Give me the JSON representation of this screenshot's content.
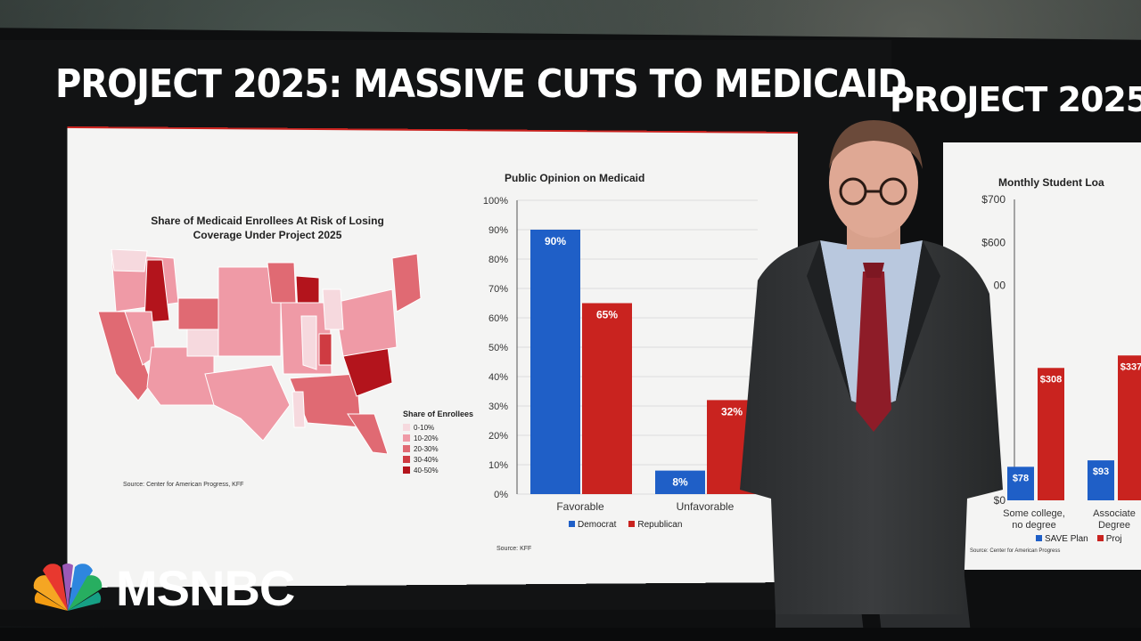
{
  "left_screen": {
    "title": "PROJECT 2025: MASSIVE CUTS TO MEDICAID",
    "map": {
      "title_line1": "Share of Medicaid Enrollees At Risk of Losing",
      "title_line2": "Coverage Under Project 2025",
      "legend_title": "Share of Enrollees",
      "legend": [
        {
          "label": "0-10%",
          "color": "#f6d9de"
        },
        {
          "label": "10-20%",
          "color": "#ef9aa6"
        },
        {
          "label": "20-30%",
          "color": "#e06a73"
        },
        {
          "label": "30-40%",
          "color": "#cf3b42"
        },
        {
          "label": "40-50%",
          "color": "#b3141c"
        }
      ],
      "source": "Source: Center for American Progress, KFF"
    },
    "chart": {
      "title": "Public Opinion on Medicaid",
      "source": "Source: KFF"
    }
  },
  "right_screen": {
    "title": "PROJECT 2025:",
    "chart": {
      "title": "Monthly Student Loa",
      "source": "Source: Center for American Progress"
    },
    "legend": [
      {
        "label": "SAVE Plan",
        "color": "#1f5fc7"
      },
      {
        "label": "Proj",
        "color": "#c9231f"
      }
    ]
  },
  "network_logo": "MSNBC",
  "chart_data": [
    {
      "type": "bar",
      "title": "Public Opinion on Medicaid",
      "categories": [
        "Favorable",
        "Unfavorable"
      ],
      "series": [
        {
          "name": "Democrat",
          "color": "#1f5fc7",
          "values": [
            90,
            8
          ]
        },
        {
          "name": "Republican",
          "color": "#c9231f",
          "values": [
            65,
            32
          ]
        }
      ],
      "data_labels": [
        [
          "90%",
          "65%"
        ],
        [
          "8%",
          "32%"
        ]
      ],
      "y_ticks": [
        "0%",
        "10%",
        "20%",
        "30%",
        "40%",
        "50%",
        "60%",
        "70%",
        "80%",
        "90%",
        "100%"
      ],
      "ylim": [
        0,
        100
      ],
      "legend_position": "bottom"
    },
    {
      "type": "bar",
      "title": "Monthly Student Loa",
      "categories": [
        "Some college,\nno degree",
        "Associate\nDegree"
      ],
      "category_lines": [
        [
          "Some college,",
          "no degree"
        ],
        [
          "Associate",
          "Degree"
        ]
      ],
      "series": [
        {
          "name": "SAVE Plan",
          "color": "#1f5fc7",
          "values": [
            78,
            93
          ]
        },
        {
          "name": "Proj",
          "color": "#c9231f",
          "values": [
            308,
            337
          ]
        }
      ],
      "data_labels": [
        [
          "$78",
          "$308"
        ],
        [
          "$93",
          "$337"
        ]
      ],
      "y_ticks": [
        "$0",
        "$600",
        "$700"
      ],
      "partial_tick": "00",
      "ylim": [
        0,
        700
      ],
      "legend_position": "bottom"
    }
  ]
}
